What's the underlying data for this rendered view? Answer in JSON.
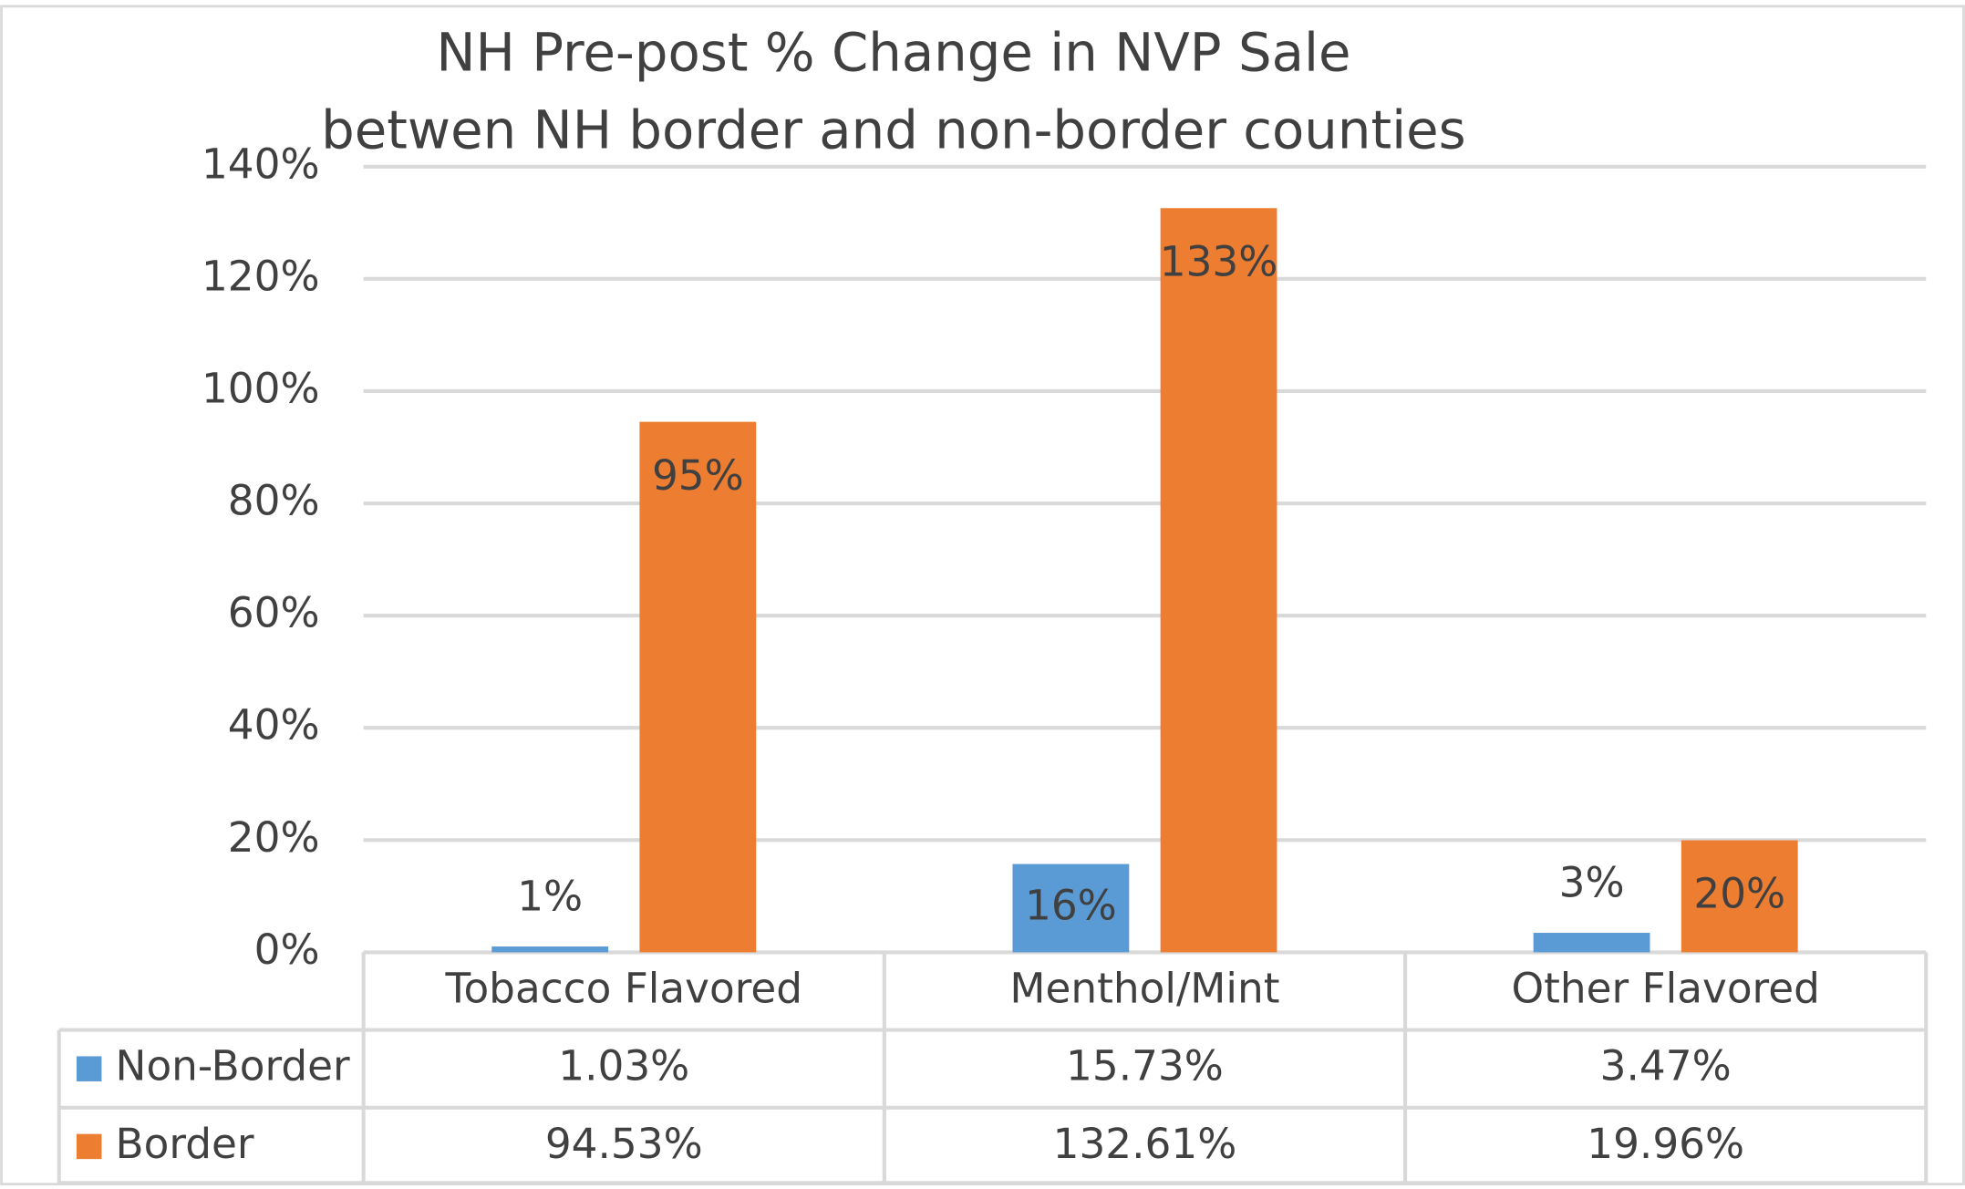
{
  "chart_data": {
    "type": "bar",
    "title": [
      "NH Pre-post % Change in NVP Sale",
      "betwen NH border and non-border counties"
    ],
    "categories": [
      "Tobacco Flavored",
      "Menthol/Mint",
      "Other Flavored"
    ],
    "series": [
      {
        "name": "Non-Border",
        "color": "#5b9bd5",
        "values": [
          1.03,
          15.73,
          3.47
        ],
        "value_labels": [
          "1%",
          "16%",
          "3%"
        ],
        "table_labels": [
          "1.03%",
          "15.73%",
          "3.47%"
        ]
      },
      {
        "name": "Border",
        "color": "#ed7d31",
        "values": [
          94.53,
          132.61,
          19.96
        ],
        "value_labels": [
          "95%",
          "133%",
          "20%"
        ],
        "table_labels": [
          "94.53%",
          "132.61%",
          "19.96%"
        ]
      }
    ],
    "ylim": [
      0,
      140
    ],
    "yticks": [
      {
        "value": 0,
        "label": "0%"
      },
      {
        "value": 20,
        "label": "20%"
      },
      {
        "value": 40,
        "label": "40%"
      },
      {
        "value": 60,
        "label": "60%"
      },
      {
        "value": 80,
        "label": "80%"
      },
      {
        "value": 100,
        "label": "100%"
      },
      {
        "value": 120,
        "label": "120%"
      },
      {
        "value": 140,
        "label": "140%"
      }
    ],
    "grid": true
  }
}
